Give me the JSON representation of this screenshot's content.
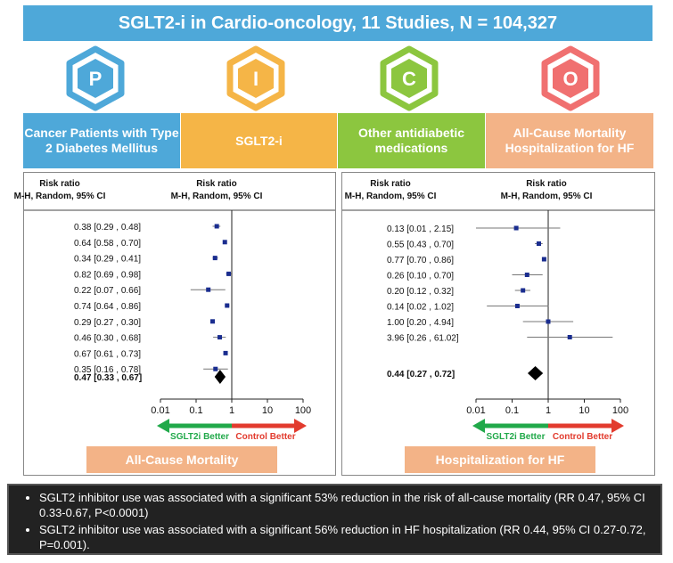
{
  "title": "SGLT2-i in Cardio-oncology, 11 Studies,  N = 104,327",
  "colors": {
    "title_bg": "#4ea8d9",
    "p": "#4ea8d9",
    "i": "#f5b547",
    "c": "#8cc63f",
    "o": "#f07070",
    "o_box": "#f3b387",
    "green_arrow": "#21a94a",
    "red_arrow": "#e23b2e",
    "marker": "#1a2d8f"
  },
  "pico": [
    {
      "letter": "P",
      "label": "Cancer Patients with Type 2 Diabetes Mellitus"
    },
    {
      "letter": "I",
      "label": "SGLT2-i"
    },
    {
      "letter": "C",
      "label": "Other antidiabetic medications"
    },
    {
      "letter": "O",
      "label": "All-Cause Mortality Hospitalization for HF"
    }
  ],
  "forest_left": {
    "header_left": [
      "Risk ratio",
      "M-H, Random, 95% CI"
    ],
    "header_right": [
      "Risk ratio",
      "M-H, Random, 95% CI"
    ],
    "studies": [
      {
        "label": "0.38 [0.29 , 0.48]",
        "rr": 0.38,
        "lo": 0.29,
        "hi": 0.48
      },
      {
        "label": "0.64 [0.58 , 0.70]",
        "rr": 0.64,
        "lo": 0.58,
        "hi": 0.7
      },
      {
        "label": "0.34 [0.29 , 0.41]",
        "rr": 0.34,
        "lo": 0.29,
        "hi": 0.41
      },
      {
        "label": "0.82 [0.69 , 0.98]",
        "rr": 0.82,
        "lo": 0.69,
        "hi": 0.98
      },
      {
        "label": "0.22 [0.07 , 0.66]",
        "rr": 0.22,
        "lo": 0.07,
        "hi": 0.66
      },
      {
        "label": "0.74 [0.64 , 0.86]",
        "rr": 0.74,
        "lo": 0.64,
        "hi": 0.86
      },
      {
        "label": "0.29 [0.27 , 0.30]",
        "rr": 0.29,
        "lo": 0.27,
        "hi": 0.3
      },
      {
        "label": "0.46 [0.30 , 0.68]",
        "rr": 0.46,
        "lo": 0.3,
        "hi": 0.68
      },
      {
        "label": "0.67 [0.61 , 0.73]",
        "rr": 0.67,
        "lo": 0.61,
        "hi": 0.73
      },
      {
        "label": "0.35 [0.16 , 0.78]",
        "rr": 0.35,
        "lo": 0.16,
        "hi": 0.78
      }
    ],
    "pooled": {
      "label": "0.47 [0.33 , 0.67]",
      "rr": 0.47,
      "lo": 0.33,
      "hi": 0.67
    },
    "ticks": [
      "0.01",
      "0.1",
      "1",
      "10",
      "100"
    ],
    "better_left": "SGLT2i Better",
    "better_right": "Control Better",
    "bottom_label": "All-Cause Mortality"
  },
  "forest_right": {
    "header_left": [
      "Risk ratio",
      "M-H, Random, 95% CI"
    ],
    "header_right": [
      "Risk ratio",
      "M-H, Random, 95% CI"
    ],
    "studies": [
      {
        "label": "0.13 [0.01 , 2.15]",
        "rr": 0.13,
        "lo": 0.01,
        "hi": 2.15
      },
      {
        "label": "0.55 [0.43 , 0.70]",
        "rr": 0.55,
        "lo": 0.43,
        "hi": 0.7
      },
      {
        "label": "0.77 [0.70 , 0.86]",
        "rr": 0.77,
        "lo": 0.7,
        "hi": 0.86
      },
      {
        "label": "0.26 [0.10 , 0.70]",
        "rr": 0.26,
        "lo": 0.1,
        "hi": 0.7
      },
      {
        "label": "0.20 [0.12 , 0.32]",
        "rr": 0.2,
        "lo": 0.12,
        "hi": 0.32
      },
      {
        "label": "0.14 [0.02 , 1.02]",
        "rr": 0.14,
        "lo": 0.02,
        "hi": 1.02
      },
      {
        "label": "1.00 [0.20 , 4.94]",
        "rr": 1.0,
        "lo": 0.2,
        "hi": 4.94
      },
      {
        "label": "3.96 [0.26 , 61.02]",
        "rr": 3.96,
        "lo": 0.26,
        "hi": 61.02
      }
    ],
    "pooled": {
      "label": "0.44 [0.27 , 0.72]",
      "rr": 0.44,
      "lo": 0.27,
      "hi": 0.72
    },
    "ticks": [
      "0.01",
      "0.1",
      "1",
      "10",
      "100"
    ],
    "better_left": "SGLT2i Better",
    "better_right": "Control Better",
    "bottom_label": "Hospitalization for HF"
  },
  "summary": [
    "SGLT2 inhibitor use was associated with a significant 53% reduction in the risk of all-cause mortality (RR 0.47, 95% CI 0.33-0.67, P<0.0001)",
    "SGLT2 inhibitor use was associated with a significant 56% reduction in HF hospitalization (RR 0.44, 95% CI 0.27-0.72, P=0.001)."
  ]
}
